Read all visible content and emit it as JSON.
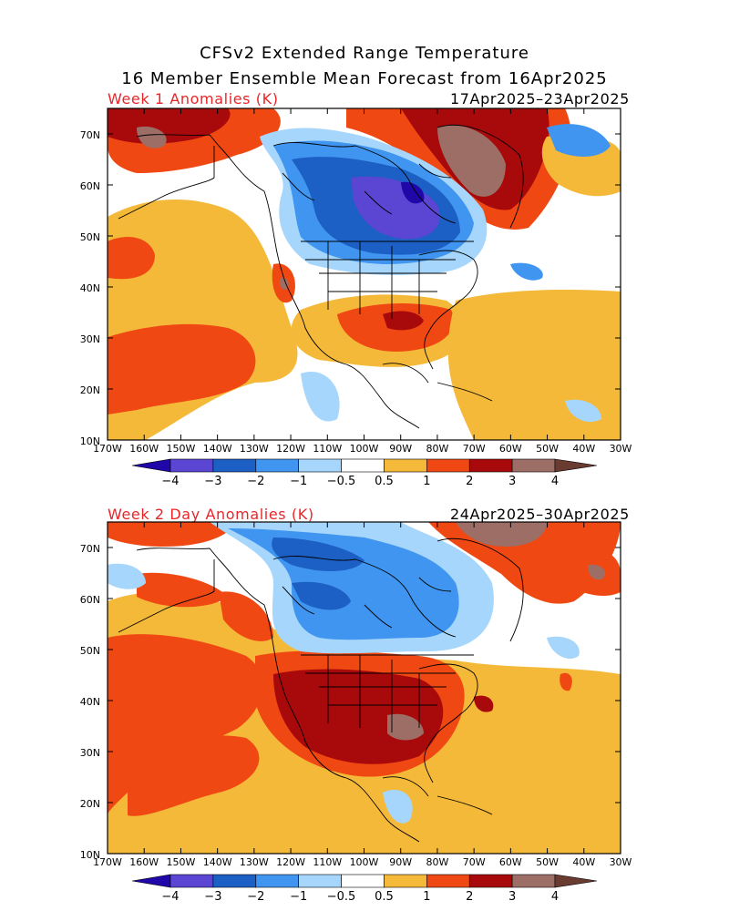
{
  "header": {
    "title_line1": "CFSv2 Extended Range Temperature",
    "title_line2": "16 Member Ensemble Mean Forecast from 16Apr2025"
  },
  "panels": [
    {
      "id": "week1",
      "label": "Week 1 Anomalies (K)",
      "date_range": "17Apr2025–23Apr2025",
      "field_colors": {
        "north_cold": "#3a78e0",
        "north_cold_core": "#5c3fd0",
        "south_warm": "#f3b53c",
        "east_warm": "#e23a16"
      }
    },
    {
      "id": "week2",
      "label": "Week 2 Day Anomalies (K)",
      "date_range": "24Apr2025–30Apr2025",
      "field_colors": {
        "north_cold": "#5aa0ef",
        "south_warm": "#f3b53c",
        "core_warm": "#a00a0a"
      }
    }
  ],
  "axes": {
    "lat_labels": [
      "70N",
      "60N",
      "50N",
      "40N",
      "30N",
      "20N",
      "10N"
    ],
    "lon_labels": [
      "170W",
      "160W",
      "150W",
      "140W",
      "130W",
      "120W",
      "110W",
      "100W",
      "90W",
      "80W",
      "70W",
      "60W",
      "50W",
      "40W",
      "30W"
    ]
  },
  "colorbar": {
    "ticks": [
      "−4",
      "−3",
      "−2",
      "−1",
      "−0.5",
      "0.5",
      "1",
      "2",
      "3",
      "4"
    ],
    "colors": [
      "#1f07a8",
      "#5a46d2",
      "#1c5fc5",
      "#3f95ef",
      "#a6d6fb",
      "#ffffff",
      "#f5b93a",
      "#f04813",
      "#a8090b",
      "#9c6e66",
      "#6a3b30"
    ]
  }
}
